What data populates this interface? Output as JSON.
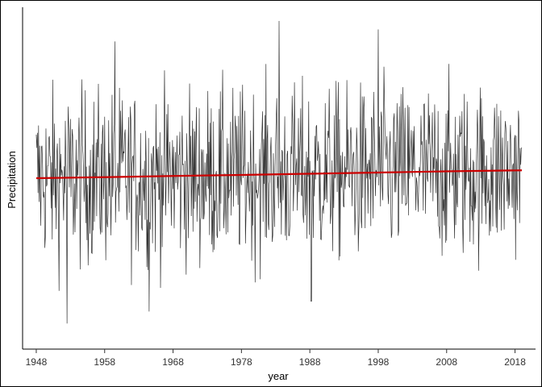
{
  "chart_data": {
    "type": "line",
    "title": "",
    "xlabel": "year",
    "ylabel": "Precipitation",
    "xlim": [
      1946,
      2021
    ],
    "ylim": [
      -100,
      100
    ],
    "x_ticks": [
      1948,
      1958,
      1968,
      1978,
      1988,
      1998,
      2008,
      2018
    ],
    "x_tick_labels": [
      "1948",
      "1958",
      "1968",
      "1978",
      "1988",
      "1998",
      "2008",
      "2018"
    ],
    "y_ticks_shown": false,
    "grid": false,
    "legend": "none",
    "series": [
      {
        "kind": "monthly observations",
        "color": "#333333",
        "x_start": 1948,
        "x_end": 2019,
        "values_per_year": 12,
        "value_range": [
          -85,
          92
        ]
      },
      {
        "kind": "trend",
        "color": "#cc0000",
        "x": [
          1948,
          1958,
          1968,
          1978,
          1988,
          1998,
          2008,
          2019
        ],
        "values": [
          0.0,
          0.6,
          1.3,
          1.9,
          2.6,
          3.3,
          4.0,
          4.6
        ]
      }
    ],
    "highlights": [
      {
        "x": 1952.5,
        "y": -85
      },
      {
        "x": 1983.5,
        "y": 92
      },
      {
        "x": 1988.2,
        "y": -72
      },
      {
        "x": 1964.5,
        "y": -78
      },
      {
        "x": 1998.0,
        "y": 87
      },
      {
        "x": 1959.5,
        "y": 80
      }
    ]
  }
}
